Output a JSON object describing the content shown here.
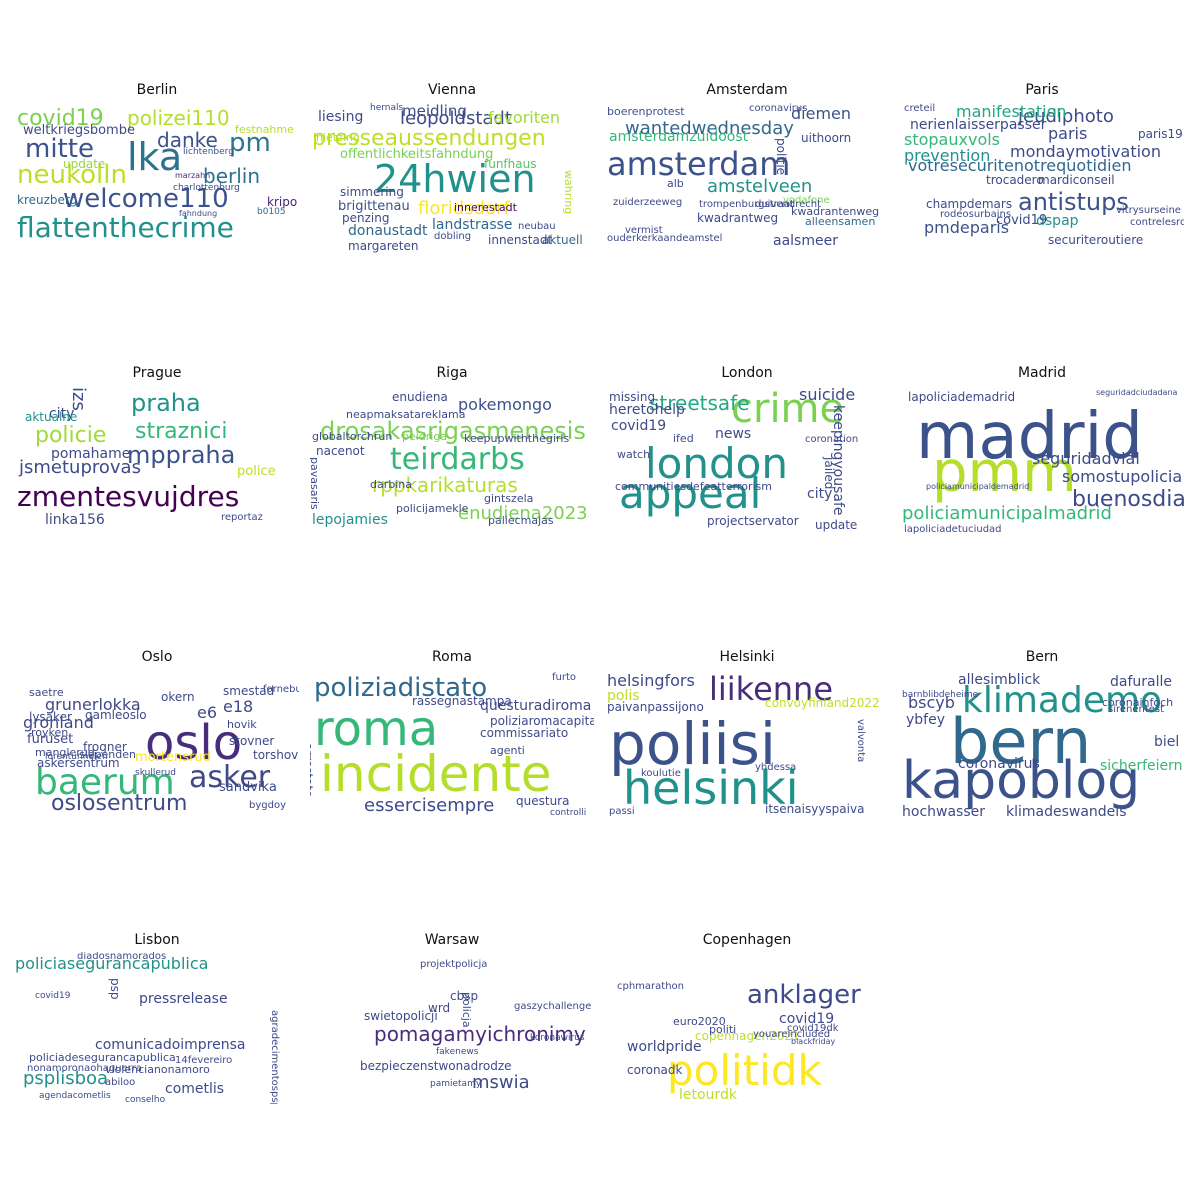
{
  "panels": [
    {
      "city": "Berlin",
      "words": [
        {
          "t": "flattenthecrime",
          "c": "#21918c"
        },
        {
          "t": "welcome110",
          "c": "#3b528b"
        },
        {
          "t": "neukolln",
          "c": "#bddf26"
        },
        {
          "t": "lka",
          "c": "#2c728e"
        },
        {
          "t": "mitte",
          "c": "#3b528b"
        },
        {
          "t": "pm",
          "c": "#2a788e"
        },
        {
          "t": "danke",
          "c": "#3b528b"
        },
        {
          "t": "covid19",
          "c": "#7ad151"
        },
        {
          "t": "polizei110",
          "c": "#b5de2b"
        },
        {
          "t": "berlin",
          "c": "#2c728e"
        },
        {
          "t": "weltkriegsbombe",
          "c": "#3e4a89"
        },
        {
          "t": "update",
          "c": "#95d840"
        },
        {
          "t": "kreuzberg",
          "c": "#31688e"
        },
        {
          "t": "spandau",
          "c": "#35b779"
        },
        {
          "t": "festnahme",
          "c": "#b5de2b"
        },
        {
          "t": "kripo",
          "c": "#482475"
        },
        {
          "t": "charlottenburg",
          "c": "#3e4a89"
        },
        {
          "t": "lichtenberg",
          "c": "#3b528b"
        },
        {
          "t": "b0105",
          "c": "#31688e"
        },
        {
          "t": "marzahn",
          "c": "#472d7b"
        },
        {
          "t": "fahndung",
          "c": "#3e4a89"
        }
      ]
    },
    {
      "city": "Vienna",
      "words": [
        {
          "t": "24hwien",
          "c": "#21918c"
        },
        {
          "t": "presseaussendungen",
          "c": "#bddf26"
        },
        {
          "t": "leopoldstadt",
          "c": "#3e4a89"
        },
        {
          "t": "favoriten",
          "c": "#a0da39"
        },
        {
          "t": "floridsdorf",
          "c": "#fde725"
        },
        {
          "t": "offentlichkeitsfahndung",
          "c": "#75d054"
        },
        {
          "t": "donaustadt",
          "c": "#31688e"
        },
        {
          "t": "brigittenau",
          "c": "#3b528b"
        },
        {
          "t": "ottakring",
          "c": "#22a884"
        },
        {
          "t": "landstrasse",
          "c": "#31688e"
        },
        {
          "t": "innerestadt",
          "c": "#44015b"
        },
        {
          "t": "meidling",
          "c": "#3e4a89"
        },
        {
          "t": "liesing",
          "c": "#3e4a89"
        },
        {
          "t": "simmering",
          "c": "#3e4a89"
        },
        {
          "t": "funfhaus",
          "c": "#52c569"
        },
        {
          "t": "margareten",
          "c": "#3e4a89"
        },
        {
          "t": "innenstadt",
          "c": "#3e4a89"
        },
        {
          "t": "aktuell",
          "c": "#31688e"
        },
        {
          "t": "penzing",
          "c": "#3e4a89"
        },
        {
          "t": "wahring",
          "c": "#b5de2b"
        },
        {
          "t": "hietzing",
          "c": "#b5de2b"
        },
        {
          "t": "neubau",
          "c": "#3e4a89"
        },
        {
          "t": "dobling",
          "c": "#3e4a89"
        },
        {
          "t": "hernals",
          "c": "#3e4a89"
        }
      ]
    },
    {
      "city": "Amsterdam",
      "words": [
        {
          "t": "amsterdam",
          "c": "#3b528b"
        },
        {
          "t": "wantedwednesday",
          "c": "#31688e"
        },
        {
          "t": "amstelveen",
          "c": "#21918c"
        },
        {
          "t": "amsterdamzuidoost",
          "c": "#35b779"
        },
        {
          "t": "diemen",
          "c": "#3b528b"
        },
        {
          "t": "uithoorn",
          "c": "#3e4a89"
        },
        {
          "t": "kwadrantweg",
          "c": "#3e4a89"
        },
        {
          "t": "kwadrantenweg",
          "c": "#3e4a89"
        },
        {
          "t": "aalsmeer",
          "c": "#3e4a89"
        },
        {
          "t": "politie",
          "c": "#3e4a89"
        },
        {
          "t": "alleensamen",
          "c": "#31688e"
        },
        {
          "t": "vodafone",
          "c": "#7ad151"
        },
        {
          "t": "trompenburgstraat",
          "c": "#3e4a89"
        },
        {
          "t": "duivendrecht",
          "c": "#3e4a89"
        },
        {
          "t": "boerenprotest",
          "c": "#3b528b"
        },
        {
          "t": "zuiderzeeweg",
          "c": "#3e4a89"
        },
        {
          "t": "ouderkerkaandeamstel",
          "c": "#3e4a89"
        },
        {
          "t": "coronavirus",
          "c": "#3e4a89"
        },
        {
          "t": "vermist",
          "c": "#3e4a89"
        },
        {
          "t": "alb",
          "c": "#3e4a89"
        }
      ]
    },
    {
      "city": "Paris",
      "words": [
        {
          "t": "votresecuritenotrequotidien",
          "c": "#31688e"
        },
        {
          "t": "antistups",
          "c": "#3b528b"
        },
        {
          "t": "jeudiphoto",
          "c": "#3e4a89"
        },
        {
          "t": "manifestation",
          "c": "#22a884"
        },
        {
          "t": "mondaymotivation",
          "c": "#3e4a89"
        },
        {
          "t": "nerienlaisserpasser",
          "c": "#3e4a89"
        },
        {
          "t": "stopauxvols",
          "c": "#35b779"
        },
        {
          "t": "prevention",
          "c": "#21918c"
        },
        {
          "t": "pmdeparis",
          "c": "#3b528b"
        },
        {
          "t": "dspap",
          "c": "#21918c"
        },
        {
          "t": "covid19",
          "c": "#3e4a89"
        },
        {
          "t": "paris",
          "c": "#3e4a89"
        },
        {
          "t": "paris19",
          "c": "#3e4a89"
        },
        {
          "t": "trocadero",
          "c": "#3e4a89"
        },
        {
          "t": "mardiconseil",
          "c": "#3e4a89"
        },
        {
          "t": "champdemars",
          "c": "#3e4a89"
        },
        {
          "t": "securiteroutiere",
          "c": "#3e4a89"
        },
        {
          "t": "rodeosurbains",
          "c": "#3e4a89"
        },
        {
          "t": "vitrysurseine",
          "c": "#3e4a89"
        },
        {
          "t": "contrelesrodeos",
          "c": "#3e4a89"
        },
        {
          "t": "creteil",
          "c": "#3e4a89"
        }
      ]
    },
    {
      "city": "Prague",
      "words": [
        {
          "t": "zmentesvujdres",
          "c": "#440154"
        },
        {
          "t": "mppraha",
          "c": "#3b528b"
        },
        {
          "t": "praha",
          "c": "#21918c"
        },
        {
          "t": "straznici",
          "c": "#35b779"
        },
        {
          "t": "policie",
          "c": "#a0da39"
        },
        {
          "t": "jsmetuprovas",
          "c": "#3e4a89"
        },
        {
          "t": "pomahame",
          "c": "#3e4a89"
        },
        {
          "t": "linka156",
          "c": "#3e4a89"
        },
        {
          "t": "city",
          "c": "#3e4a89"
        },
        {
          "t": "izs",
          "c": "#3e4a89"
        },
        {
          "t": "police",
          "c": "#bddf26"
        },
        {
          "t": "aktualne",
          "c": "#21918c"
        },
        {
          "t": "reportaz",
          "c": "#3e4a89"
        }
      ]
    },
    {
      "city": "Riga",
      "words": [
        {
          "t": "teirdarbs",
          "c": "#35b779"
        },
        {
          "t": "drosakasrigasmenesis",
          "c": "#7ad151"
        },
        {
          "t": "rppkarikaturas",
          "c": "#b5de2b"
        },
        {
          "t": "enudiena2023",
          "c": "#7ad151"
        },
        {
          "t": "pokemongo",
          "c": "#3b528b"
        },
        {
          "t": "neapmaksatareklama",
          "c": "#3e4a89"
        },
        {
          "t": "keepupwiththegirls",
          "c": "#3e4a89"
        },
        {
          "t": "globaltorchrun",
          "c": "#3e4a89"
        },
        {
          "t": "nacenot",
          "c": "#3e4a89"
        },
        {
          "t": "lepojamies",
          "c": "#21918c"
        },
        {
          "t": "policijamekle",
          "c": "#3e4a89"
        },
        {
          "t": "gintszela",
          "c": "#3e4a89"
        },
        {
          "t": "paliecmajas",
          "c": "#3e4a89"
        },
        {
          "t": "darbina",
          "c": "#3e4a89"
        },
        {
          "t": "pavasaris",
          "c": "#3e4a89"
        },
        {
          "t": "enudiena",
          "c": "#3e4a89"
        },
        {
          "t": "peldriga",
          "c": "#7ad151"
        }
      ]
    },
    {
      "city": "London",
      "words": [
        {
          "t": "london",
          "c": "#21918c"
        },
        {
          "t": "appeal",
          "c": "#21918c"
        },
        {
          "t": "crime",
          "c": "#7ad151"
        },
        {
          "t": "streetsafe",
          "c": "#22a884"
        },
        {
          "t": "heretohelp",
          "c": "#3e4a89"
        },
        {
          "t": "suicide",
          "c": "#3e4a89"
        },
        {
          "t": "keepingyousafe",
          "c": "#3e4a89"
        },
        {
          "t": "communitiesdefeatterrorism",
          "c": "#3e4a89"
        },
        {
          "t": "projectservator",
          "c": "#3e4a89"
        },
        {
          "t": "covid19",
          "c": "#3e4a89"
        },
        {
          "t": "news",
          "c": "#3e4a89"
        },
        {
          "t": "city",
          "c": "#3e4a89"
        },
        {
          "t": "jailed",
          "c": "#3e4a89"
        },
        {
          "t": "missing",
          "c": "#3e4a89"
        },
        {
          "t": "update",
          "c": "#3e4a89"
        },
        {
          "t": "coronation",
          "c": "#3e4a89"
        },
        {
          "t": "ifed",
          "c": "#3e4a89"
        },
        {
          "t": "watch",
          "c": "#3e4a89"
        }
      ]
    },
    {
      "city": "Madrid",
      "words": [
        {
          "t": "madrid",
          "c": "#3b528b"
        },
        {
          "t": "pmm",
          "c": "#b5de2b"
        },
        {
          "t": "policiamunicipalmadrid",
          "c": "#35b779"
        },
        {
          "t": "seguridadvial",
          "c": "#3e4a89"
        },
        {
          "t": "somostupolicia",
          "c": "#3e4a89"
        },
        {
          "t": "buenosdias",
          "c": "#3e4a89"
        },
        {
          "t": "lapoliciademadrid",
          "c": "#3e4a89"
        },
        {
          "t": "lapoliciadetuciudad",
          "c": "#3e4a89"
        },
        {
          "t": "policiamunicipaldemadrid",
          "c": "#3e4a89"
        },
        {
          "t": "seguridadciudadana",
          "c": "#3e4a89"
        }
      ]
    },
    {
      "city": "Oslo",
      "words": [
        {
          "t": "oslo",
          "c": "#472d7b"
        },
        {
          "t": "baerum",
          "c": "#35b779"
        },
        {
          "t": "asker",
          "c": "#3e4a89"
        },
        {
          "t": "oslosentrum",
          "c": "#3e4a89"
        },
        {
          "t": "grunerlokka",
          "c": "#3e4a89"
        },
        {
          "t": "gronland",
          "c": "#3e4a89"
        },
        {
          "t": "sandvika",
          "c": "#3e4a89"
        },
        {
          "t": "e18",
          "c": "#3e4a89"
        },
        {
          "t": "e6",
          "c": "#3e4a89"
        },
        {
          "t": "askersentrum",
          "c": "#3e4a89"
        },
        {
          "t": "lysaker",
          "c": "#3e4a89"
        },
        {
          "t": "gamleoslo",
          "c": "#3e4a89"
        },
        {
          "t": "furuset",
          "c": "#3e4a89"
        },
        {
          "t": "majorstuen",
          "c": "#3e4a89"
        },
        {
          "t": "smestad",
          "c": "#3e4a89"
        },
        {
          "t": "hovik",
          "c": "#3e4a89"
        },
        {
          "t": "frogner",
          "c": "#3e4a89"
        },
        {
          "t": "stovner",
          "c": "#3e4a89"
        },
        {
          "t": "torshov",
          "c": "#3e4a89"
        },
        {
          "t": "bygdoy",
          "c": "#3e4a89"
        },
        {
          "t": "okern",
          "c": "#3e4a89"
        },
        {
          "t": "saetre",
          "c": "#3e4a89"
        },
        {
          "t": "fornebu",
          "c": "#3e4a89"
        },
        {
          "t": "slependen",
          "c": "#3e4a89"
        },
        {
          "t": "manglerud",
          "c": "#3e4a89"
        },
        {
          "t": "royken",
          "c": "#3e4a89"
        },
        {
          "t": "mortensrud",
          "c": "#fde725"
        },
        {
          "t": "skullerud",
          "c": "#3e4a89"
        },
        {
          "t": "lorentunnelen",
          "c": "#3e4a89"
        }
      ]
    },
    {
      "city": "Roma",
      "words": [
        {
          "t": "roma",
          "c": "#35b779"
        },
        {
          "t": "incidente",
          "c": "#b5de2b"
        },
        {
          "t": "poliziadistato",
          "c": "#31688e"
        },
        {
          "t": "essercisempre",
          "c": "#3e4a89"
        },
        {
          "t": "questuradiroma",
          "c": "#3e4a89"
        },
        {
          "t": "rassegnastampa",
          "c": "#3e4a89"
        },
        {
          "t": "poliziaromacapitale",
          "c": "#3e4a89"
        },
        {
          "t": "commissariato",
          "c": "#3e4a89"
        },
        {
          "t": "questura",
          "c": "#3e4a89"
        },
        {
          "t": "agenti",
          "c": "#3e4a89"
        },
        {
          "t": "arrestato",
          "c": "#3e4a89"
        },
        {
          "t": "furto",
          "c": "#3e4a89"
        },
        {
          "t": "controlli",
          "c": "#3e4a89"
        }
      ]
    },
    {
      "city": "Helsinki",
      "words": [
        {
          "t": "poliisi",
          "c": "#3b528b"
        },
        {
          "t": "helsinki",
          "c": "#21918c"
        },
        {
          "t": "liikenne",
          "c": "#472d7b"
        },
        {
          "t": "helsingfors",
          "c": "#3e4a89"
        },
        {
          "t": "polis",
          "c": "#bddf26"
        },
        {
          "t": "paivanpassijono",
          "c": "#3e4a89"
        },
        {
          "t": "convoyfinland2022",
          "c": "#bddf26"
        },
        {
          "t": "itsenaisyyspaiva",
          "c": "#3e4a89"
        },
        {
          "t": "koulutie",
          "c": "#3e4a89"
        },
        {
          "t": "passi",
          "c": "#3e4a89"
        },
        {
          "t": "yhdessa",
          "c": "#3e4a89"
        },
        {
          "t": "valvonta",
          "c": "#3e4a89"
        }
      ]
    },
    {
      "city": "Bern",
      "words": [
        {
          "t": "bern",
          "c": "#31688e"
        },
        {
          "t": "kapoblog",
          "c": "#3b528b"
        },
        {
          "t": "klimademo",
          "c": "#21918c"
        },
        {
          "t": "allesimblick",
          "c": "#3e4a89"
        },
        {
          "t": "bscyb",
          "c": "#3e4a89"
        },
        {
          "t": "ybfey",
          "c": "#3e4a89"
        },
        {
          "t": "dafuralle",
          "c": "#3e4a89"
        },
        {
          "t": "biel",
          "c": "#3e4a89"
        },
        {
          "t": "coronavirus",
          "c": "#3e4a89"
        },
        {
          "t": "sicherfeiern",
          "c": "#35b779"
        },
        {
          "t": "klimadeswandels",
          "c": "#3e4a89"
        },
        {
          "t": "hochwasser",
          "c": "#3e4a89"
        },
        {
          "t": "coronainfoch",
          "c": "#3e4a89"
        },
        {
          "t": "sirenentest",
          "c": "#3e4a89"
        },
        {
          "t": "barnblibdeheime",
          "c": "#3e4a89"
        }
      ]
    },
    {
      "city": "Lisbon",
      "words": [
        {
          "t": "policiasegurancapublica",
          "c": "#21918c"
        },
        {
          "t": "psplisboa",
          "c": "#21918c"
        },
        {
          "t": "comunicadoimprensa",
          "c": "#3e4a89"
        },
        {
          "t": "pressrelease",
          "c": "#3e4a89"
        },
        {
          "t": "cometlis",
          "c": "#3e4a89"
        },
        {
          "t": "policiadesegurancapublica",
          "c": "#3e4a89"
        },
        {
          "t": "violencianonamoro",
          "c": "#3e4a89"
        },
        {
          "t": "nonamoronaohaguerra",
          "c": "#3e4a89"
        },
        {
          "t": "diadosnamorados",
          "c": "#3e4a89"
        },
        {
          "t": "psp",
          "c": "#3e4a89"
        },
        {
          "t": "14fevereiro",
          "c": "#3e4a89"
        },
        {
          "t": "abiloo",
          "c": "#3e4a89"
        },
        {
          "t": "agendacometlis",
          "c": "#3e4a89"
        },
        {
          "t": "conselho",
          "c": "#3e4a89"
        },
        {
          "t": "covid19",
          "c": "#3e4a89"
        },
        {
          "t": "agradecimentospsp",
          "c": "#3e4a89"
        }
      ]
    },
    {
      "city": "Warsaw",
      "words": [
        {
          "t": "pomagamyichronimy",
          "c": "#472d7b"
        },
        {
          "t": "mswia",
          "c": "#3e4a89"
        },
        {
          "t": "bezpieczenstwonadrodze",
          "c": "#3e4a89"
        },
        {
          "t": "swietopolicji",
          "c": "#3e4a89"
        },
        {
          "t": "cbsp",
          "c": "#3e4a89"
        },
        {
          "t": "wrd",
          "c": "#3e4a89"
        },
        {
          "t": "projektpolicja",
          "c": "#3e4a89"
        },
        {
          "t": "gaszychallenge",
          "c": "#3e4a89"
        },
        {
          "t": "policja",
          "c": "#3e4a89"
        },
        {
          "t": "koronawirus",
          "c": "#3e4a89"
        },
        {
          "t": "pamietamy",
          "c": "#3e4a89"
        },
        {
          "t": "fakenews",
          "c": "#3e4a89"
        }
      ]
    },
    {
      "city": "Copenhagen",
      "words": [
        {
          "t": "politidk",
          "c": "#fde725"
        },
        {
          "t": "anklager",
          "c": "#3e4a89"
        },
        {
          "t": "covid19",
          "c": "#3e4a89"
        },
        {
          "t": "worldpride",
          "c": "#3e4a89"
        },
        {
          "t": "coronadk",
          "c": "#3e4a89"
        },
        {
          "t": "copenhagen2021",
          "c": "#bddf26"
        },
        {
          "t": "politi",
          "c": "#3e4a89"
        },
        {
          "t": "euro2020",
          "c": "#3e4a89"
        },
        {
          "t": "youareincluded",
          "c": "#3e4a89"
        },
        {
          "t": "letourdk",
          "c": "#bddf26"
        },
        {
          "t": "covid19dk",
          "c": "#3e4a89"
        },
        {
          "t": "cphmarathon",
          "c": "#3e4a89"
        },
        {
          "t": "blackfriday",
          "c": "#3e4a89"
        }
      ]
    }
  ]
}
